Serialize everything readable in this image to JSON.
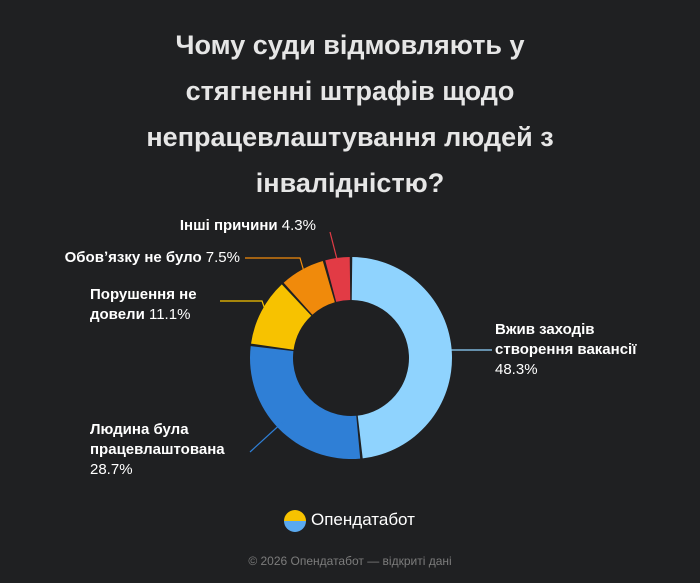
{
  "chart_data": {
    "type": "donut",
    "title": "Чому суди відмовляють у стягненні штрафів щодо непрацевлаштування людей з інвалідністю?",
    "categories": [
      "Вжив заходів створення вакансії",
      "Людина була працевлаштована",
      "Порушення не довели",
      "Обовʼязку не було",
      "Інші причини"
    ],
    "values": [
      48.3,
      28.7,
      11.1,
      7.5,
      4.3
    ],
    "value_labels": [
      "48.3%",
      "28.7%",
      "11.1%",
      "7.5%",
      "4.3%"
    ],
    "colors": [
      "#8fd3fe",
      "#2f7fd6",
      "#f7c200",
      "#f08a0b",
      "#e23b45"
    ]
  },
  "brand": "Опендатабот",
  "footer": "© 2026 Опендатабот — відкриті дані"
}
